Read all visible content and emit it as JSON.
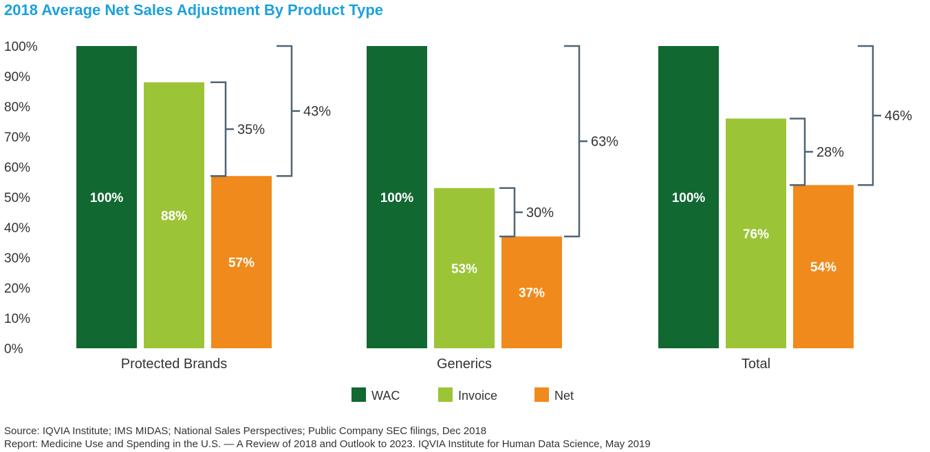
{
  "chart_data": {
    "type": "bar",
    "title": "2018 Average Net Sales Adjustment By Product Type",
    "categories": [
      "Protected Brands",
      "Generics",
      "Total"
    ],
    "series": [
      {
        "name": "WAC",
        "color": "#116831",
        "values": [
          100,
          100,
          100
        ],
        "labels": [
          "100%",
          "100%",
          "100%"
        ]
      },
      {
        "name": "Invoice",
        "color": "#9cc437",
        "values": [
          88,
          53,
          76
        ],
        "labels": [
          "88%",
          "53%",
          "76%"
        ]
      },
      {
        "name": "Net",
        "color": "#f08a1c",
        "values": [
          57,
          37,
          54
        ],
        "labels": [
          "57%",
          "37%",
          "54%"
        ]
      }
    ],
    "ylim": [
      0,
      100
    ],
    "yticks": [
      "0%",
      "10%",
      "20%",
      "30%",
      "40%",
      "50%",
      "60%",
      "70%",
      "80%",
      "90%",
      "100%"
    ],
    "annotations": [
      {
        "category": "Protected Brands",
        "from": "Invoice",
        "to": "Net",
        "label": "35%"
      },
      {
        "category": "Protected Brands",
        "from": "WAC",
        "to": "Net",
        "label": "43%"
      },
      {
        "category": "Generics",
        "from": "Invoice",
        "to": "Net",
        "label": "30%"
      },
      {
        "category": "Generics",
        "from": "WAC",
        "to": "Net",
        "label": "63%"
      },
      {
        "category": "Total",
        "from": "Invoice",
        "to": "Net",
        "label": "28%"
      },
      {
        "category": "Total",
        "from": "WAC",
        "to": "Net",
        "label": "46%"
      }
    ],
    "legend": "bottom-center",
    "grid": false
  },
  "source_line": "Source: IQVIA Institute; IMS MIDAS; National Sales Perspectives; Public Company SEC filings, Dec 2018",
  "report_line": "Report: Medicine Use and Spending in the U.S. — A Review of 2018 and Outlook to 2023. IQVIA Institute for Human Data Science, May 2019"
}
